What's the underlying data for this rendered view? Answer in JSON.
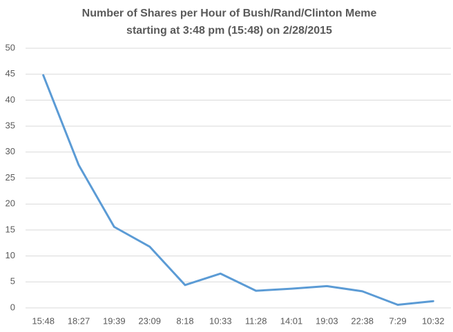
{
  "chart_data": {
    "type": "line",
    "title": "Number of Shares per Hour of Bush/Rand/Clinton Meme",
    "subtitle": "starting at 3:48 pm (15:48) on 2/28/2015",
    "categories": [
      "15:48",
      "18:27",
      "19:39",
      "23:09",
      "8:18",
      "10:33",
      "11:28",
      "14:01",
      "19:03",
      "22:38",
      "7:29",
      "10:32"
    ],
    "values": [
      44.8,
      27.5,
      15.6,
      11.8,
      4.4,
      6.6,
      3.3,
      3.7,
      4.2,
      3.2,
      0.6,
      1.3
    ],
    "color": "#5b9bd5",
    "ylim": [
      0,
      50
    ],
    "yticks": [
      0,
      5,
      10,
      15,
      20,
      25,
      30,
      35,
      40,
      45,
      50
    ],
    "grid": true
  }
}
